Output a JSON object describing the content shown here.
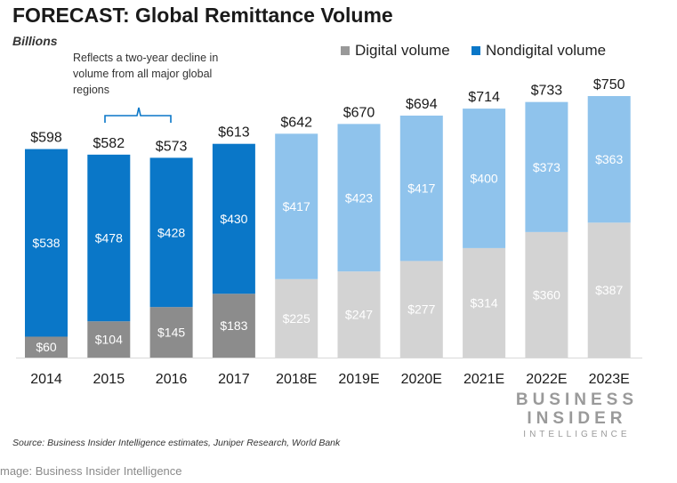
{
  "chart_data": {
    "type": "bar",
    "stacked": true,
    "title": "FORECAST: Global Remittance Volume",
    "subtitle": "Billions",
    "categories": [
      "2014",
      "2015",
      "2016",
      "2017",
      "2018E",
      "2019E",
      "2020E",
      "2021E",
      "2022E",
      "2023E"
    ],
    "series": [
      {
        "name": "Digital volume",
        "values": [
          60,
          104,
          145,
          183,
          225,
          247,
          277,
          314,
          360,
          387
        ],
        "actual_color": "#8c8c8c",
        "forecast_color": "#d3d3d3"
      },
      {
        "name": "Nondigital volume",
        "values": [
          538,
          478,
          428,
          430,
          417,
          423,
          417,
          400,
          373,
          363
        ],
        "actual_color": "#0a77c8",
        "forecast_color": "#8fc3ec"
      }
    ],
    "totals": [
      "$598",
      "$582",
      "$573",
      "$613",
      "$642",
      "$670",
      "$694",
      "$714",
      "$733",
      "$750"
    ],
    "digital_labels": [
      "$60",
      "$104",
      "$145",
      "$183",
      "$225",
      "$247",
      "$277",
      "$314",
      "$360",
      "$387"
    ],
    "nondigital_labels": [
      "$538",
      "$478",
      "$428",
      "$430",
      "$417",
      "$423",
      "$417",
      "$400",
      "$373",
      "$363"
    ],
    "forecast_start_index": 4,
    "ylim": [
      0,
      750
    ],
    "xlabel": "",
    "ylabel": "",
    "legend_position": "top-right",
    "annotation": "Reflects a two-year decline in volume from all major global regions"
  },
  "legend": {
    "digital_label": "Digital volume",
    "digital_color": "#999999",
    "nondigital_label": "Nondigital volume",
    "nondigital_color": "#0a77c8"
  },
  "source": "Source: Business Insider Intelligence estimates, Juniper Research, World Bank",
  "brand": {
    "line1": "BUSINESS",
    "line2": "INSIDER",
    "line3": "INTELLIGENCE"
  },
  "credit": "mage: Business Insider Intelligence"
}
